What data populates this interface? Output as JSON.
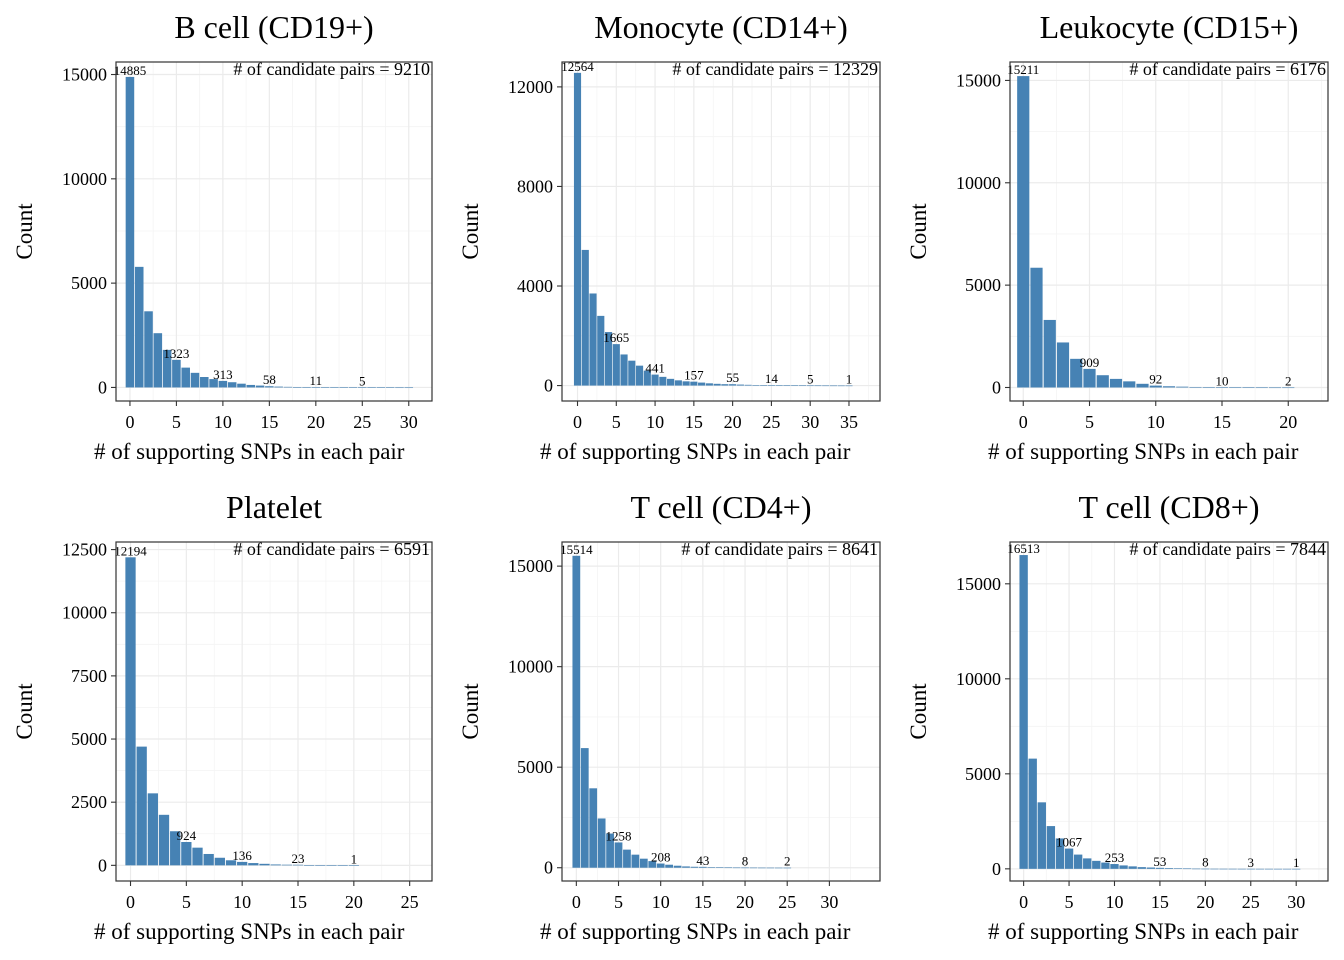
{
  "style": {
    "bar_color": "#4682b4",
    "grid_major": "#ebebeb",
    "grid_minor": "#f4f4f4",
    "panel_border": "#333333"
  },
  "chart_data": [
    {
      "type": "bar",
      "title": "B cell (CD19+)",
      "xlabel": "# of supporting SNPs in each pair",
      "ylabel": "Count",
      "annotation": "# of candidate pairs = 9210",
      "xlim": [
        -1.5,
        32.5
      ],
      "ylim": [
        -650,
        15600
      ],
      "xbreaks": [
        0,
        5,
        10,
        15,
        20,
        25,
        30
      ],
      "ybreaks": [
        0,
        5000,
        10000,
        15000
      ],
      "xminor": [
        2.5,
        7.5,
        12.5,
        17.5,
        22.5,
        27.5
      ],
      "yminor": [
        2500,
        7500,
        12500
      ],
      "x": [
        0,
        1,
        2,
        3,
        4,
        5,
        6,
        7,
        8,
        9,
        10,
        11,
        12,
        13,
        14,
        15,
        16,
        17,
        18,
        19,
        20,
        21,
        22,
        23,
        24,
        25,
        26,
        27,
        28,
        29,
        30
      ],
      "values": [
        14885,
        5780,
        3650,
        2600,
        1800,
        1323,
        950,
        700,
        500,
        400,
        313,
        250,
        180,
        120,
        90,
        58,
        40,
        28,
        20,
        14,
        11,
        9,
        7,
        6,
        5,
        5,
        4,
        3,
        2,
        1,
        1
      ],
      "bar_labels": [
        {
          "x": 0,
          "label": "14885"
        },
        {
          "x": 5,
          "label": "1323"
        },
        {
          "x": 10,
          "label": "313"
        },
        {
          "x": 15,
          "label": "58"
        },
        {
          "x": 20,
          "label": "11"
        },
        {
          "x": 25,
          "label": "5"
        }
      ]
    },
    {
      "type": "bar",
      "title": "Monocyte (CD14+)",
      "xlabel": "# of supporting SNPs in each pair",
      "ylabel": "Count",
      "annotation": "# of candidate pairs = 12329",
      "xlim": [
        -2,
        39
      ],
      "ylim": [
        -620,
        13000
      ],
      "xbreaks": [
        0,
        5,
        10,
        15,
        20,
        25,
        30,
        35
      ],
      "ybreaks": [
        0,
        4000,
        8000,
        12000
      ],
      "xminor": [
        2.5,
        7.5,
        12.5,
        17.5,
        22.5,
        27.5,
        32.5,
        37.5
      ],
      "yminor": [
        2000,
        6000,
        10000
      ],
      "x": [
        0,
        1,
        2,
        3,
        4,
        5,
        6,
        7,
        8,
        9,
        10,
        11,
        12,
        13,
        14,
        15,
        16,
        17,
        18,
        19,
        20,
        21,
        22,
        23,
        24,
        25,
        26,
        27,
        28,
        29,
        30,
        31,
        32,
        33,
        34,
        35
      ],
      "values": [
        12564,
        5450,
        3700,
        2800,
        2150,
        1665,
        1250,
        1000,
        800,
        600,
        441,
        350,
        270,
        210,
        170,
        157,
        120,
        90,
        70,
        55,
        55,
        40,
        30,
        22,
        18,
        14,
        12,
        10,
        8,
        6,
        5,
        4,
        3,
        2,
        1,
        1
      ],
      "bar_labels": [
        {
          "x": 0,
          "label": "12564"
        },
        {
          "x": 5,
          "label": "1665"
        },
        {
          "x": 10,
          "label": "441"
        },
        {
          "x": 15,
          "label": "157"
        },
        {
          "x": 20,
          "label": "55"
        },
        {
          "x": 25,
          "label": "14"
        },
        {
          "x": 30,
          "label": "5"
        },
        {
          "x": 35,
          "label": "1"
        }
      ]
    },
    {
      "type": "bar",
      "title": "Leukocyte (CD15+)",
      "xlabel": "# of supporting SNPs in each pair",
      "ylabel": "Count",
      "annotation": "# of candidate pairs = 6176",
      "xlim": [
        -1,
        23
      ],
      "ylim": [
        -660,
        15900
      ],
      "xbreaks": [
        0,
        5,
        10,
        15,
        20
      ],
      "ybreaks": [
        0,
        5000,
        10000,
        15000
      ],
      "xminor": [
        2.5,
        7.5,
        12.5,
        17.5,
        22.5
      ],
      "yminor": [
        2500,
        7500,
        12500
      ],
      "x": [
        0,
        1,
        2,
        3,
        4,
        5,
        6,
        7,
        8,
        9,
        10,
        11,
        12,
        13,
        14,
        15,
        16,
        17,
        18,
        19,
        20
      ],
      "values": [
        15211,
        5850,
        3300,
        2200,
        1400,
        909,
        600,
        420,
        300,
        180,
        92,
        60,
        40,
        25,
        15,
        10,
        6,
        4,
        3,
        2,
        2
      ],
      "bar_labels": [
        {
          "x": 0,
          "label": "15211"
        },
        {
          "x": 5,
          "label": "909"
        },
        {
          "x": 10,
          "label": "92"
        },
        {
          "x": 15,
          "label": "10"
        },
        {
          "x": 20,
          "label": "2"
        }
      ]
    },
    {
      "type": "bar",
      "title": "Platelet",
      "xlabel": "# of supporting SNPs in each pair",
      "ylabel": "Count",
      "annotation": "# of candidate pairs = 6591",
      "xlim": [
        -1.3,
        27
      ],
      "ylim": [
        -620,
        12800
      ],
      "xbreaks": [
        0,
        5,
        10,
        15,
        20,
        25
      ],
      "ybreaks": [
        0,
        2500,
        5000,
        7500,
        10000,
        12500
      ],
      "xminor": [
        2.5,
        7.5,
        12.5,
        17.5,
        22.5
      ],
      "yminor": [
        1250,
        3750,
        6250,
        8750,
        11250
      ],
      "x": [
        0,
        1,
        2,
        3,
        4,
        5,
        6,
        7,
        8,
        9,
        10,
        11,
        12,
        13,
        14,
        15,
        16,
        17,
        18,
        19,
        20
      ],
      "values": [
        12194,
        4700,
        2850,
        2000,
        1350,
        924,
        700,
        450,
        300,
        200,
        136,
        90,
        60,
        35,
        25,
        23,
        12,
        8,
        4,
        2,
        1
      ],
      "bar_labels": [
        {
          "x": 0,
          "label": "12194"
        },
        {
          "x": 5,
          "label": "924"
        },
        {
          "x": 10,
          "label": "136"
        },
        {
          "x": 15,
          "label": "23"
        },
        {
          "x": 20,
          "label": "1"
        }
      ]
    },
    {
      "type": "bar",
      "title": "T cell (CD4+)",
      "xlabel": "# of supporting SNPs in each pair",
      "ylabel": "Count",
      "annotation": "# of candidate pairs = 8641",
      "xlim": [
        -1.7,
        36
      ],
      "ylim": [
        -660,
        16200
      ],
      "xbreaks": [
        0,
        5,
        10,
        15,
        20,
        25,
        30
      ],
      "ybreaks": [
        0,
        5000,
        10000,
        15000
      ],
      "xminor": [
        2.5,
        7.5,
        12.5,
        17.5,
        22.5,
        27.5,
        32.5
      ],
      "yminor": [
        2500,
        7500,
        12500
      ],
      "x": [
        0,
        1,
        2,
        3,
        4,
        5,
        6,
        7,
        8,
        9,
        10,
        11,
        12,
        13,
        14,
        15,
        16,
        17,
        18,
        19,
        20,
        21,
        22,
        23,
        24,
        25
      ],
      "values": [
        15514,
        5950,
        3950,
        2450,
        1700,
        1258,
        900,
        650,
        450,
        330,
        208,
        150,
        100,
        65,
        48,
        43,
        30,
        20,
        14,
        10,
        8,
        6,
        4,
        3,
        2,
        2
      ],
      "bar_labels": [
        {
          "x": 0,
          "label": "15514"
        },
        {
          "x": 5,
          "label": "1258"
        },
        {
          "x": 10,
          "label": "208"
        },
        {
          "x": 15,
          "label": "43"
        },
        {
          "x": 20,
          "label": "8"
        },
        {
          "x": 25,
          "label": "2"
        }
      ]
    },
    {
      "type": "bar",
      "title": "T cell (CD8+)",
      "xlabel": "# of supporting SNPs in each pair",
      "ylabel": "Count",
      "annotation": "# of candidate pairs = 7844",
      "xlim": [
        -1.5,
        33.5
      ],
      "ylim": [
        -640,
        17200
      ],
      "xbreaks": [
        0,
        5,
        10,
        15,
        20,
        25,
        30
      ],
      "ybreaks": [
        0,
        5000,
        10000,
        15000
      ],
      "xminor": [
        2.5,
        7.5,
        12.5,
        17.5,
        22.5,
        27.5,
        32.5
      ],
      "yminor": [
        2500,
        7500,
        12500
      ],
      "x": [
        0,
        1,
        2,
        3,
        4,
        5,
        6,
        7,
        8,
        9,
        10,
        11,
        12,
        13,
        14,
        15,
        16,
        17,
        18,
        19,
        20,
        21,
        22,
        23,
        24,
        25,
        26,
        27,
        28,
        29,
        30
      ],
      "values": [
        16513,
        5800,
        3500,
        2250,
        1600,
        1067,
        750,
        550,
        420,
        330,
        253,
        180,
        130,
        90,
        70,
        53,
        40,
        28,
        20,
        12,
        8,
        6,
        5,
        4,
        3,
        3,
        2,
        2,
        1,
        1,
        1
      ],
      "bar_labels": [
        {
          "x": 0,
          "label": "16513"
        },
        {
          "x": 5,
          "label": "1067"
        },
        {
          "x": 10,
          "label": "253"
        },
        {
          "x": 15,
          "label": "53"
        },
        {
          "x": 20,
          "label": "8"
        },
        {
          "x": 25,
          "label": "3"
        },
        {
          "x": 30,
          "label": "1"
        }
      ]
    }
  ]
}
